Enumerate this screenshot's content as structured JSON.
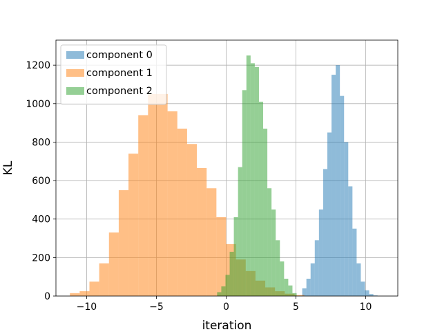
{
  "chart_data": {
    "type": "histogram",
    "title": "",
    "xlabel": "iteration",
    "ylabel": "KL",
    "xlim": [
      -12.2,
      12.3
    ],
    "ylim": [
      0,
      1330
    ],
    "xticks": [
      -10,
      -5,
      0,
      5,
      10
    ],
    "yticks": [
      0,
      200,
      400,
      600,
      800,
      1000,
      1200
    ],
    "xtick_labels": [
      "−10",
      "−5",
      "0",
      "5",
      "10"
    ],
    "ytick_labels": [
      "0",
      "200",
      "400",
      "600",
      "800",
      "1000",
      "1200"
    ],
    "grid": true,
    "legend_position": "top-left",
    "bar_alpha": 0.5,
    "series": [
      {
        "name": "component 0",
        "color": "#1f77b4",
        "bin_edges": [
          5.45,
          5.75,
          6.05,
          6.35,
          6.65,
          6.95,
          7.25,
          7.55,
          7.85,
          8.15,
          8.45,
          8.75,
          9.05,
          9.35,
          9.65,
          9.95,
          10.25,
          10.55,
          10.85
        ],
        "counts": [
          40,
          90,
          170,
          290,
          450,
          660,
          850,
          1150,
          1200,
          1040,
          800,
          570,
          350,
          170,
          75,
          30,
          10,
          3
        ]
      },
      {
        "name": "component 1",
        "color": "#ff7f0e",
        "bin_edges": [
          -11.2,
          -10.5,
          -9.8,
          -9.1,
          -8.4,
          -7.7,
          -7.0,
          -6.3,
          -5.6,
          -4.9,
          -4.2,
          -3.5,
          -2.8,
          -2.1,
          -1.4,
          -0.7,
          0.0,
          0.7,
          1.4,
          2.1,
          2.8,
          3.5,
          4.2,
          4.9,
          5.6
        ],
        "counts": [
          15,
          25,
          75,
          170,
          330,
          550,
          740,
          940,
          1050,
          1050,
          960,
          870,
          790,
          665,
          560,
          410,
          270,
          190,
          130,
          80,
          45,
          25,
          12,
          5
        ]
      },
      {
        "name": "component 2",
        "color": "#2ca02c",
        "bin_edges": [
          -0.65,
          -0.35,
          -0.05,
          0.25,
          0.55,
          0.85,
          1.15,
          1.45,
          1.75,
          2.05,
          2.35,
          2.65,
          2.95,
          3.25,
          3.55,
          3.85,
          4.15,
          4.45,
          4.75,
          5.05
        ],
        "counts": [
          20,
          50,
          110,
          230,
          410,
          670,
          1070,
          1250,
          1210,
          1190,
          1010,
          870,
          560,
          450,
          290,
          180,
          90,
          55,
          15
        ]
      }
    ]
  }
}
